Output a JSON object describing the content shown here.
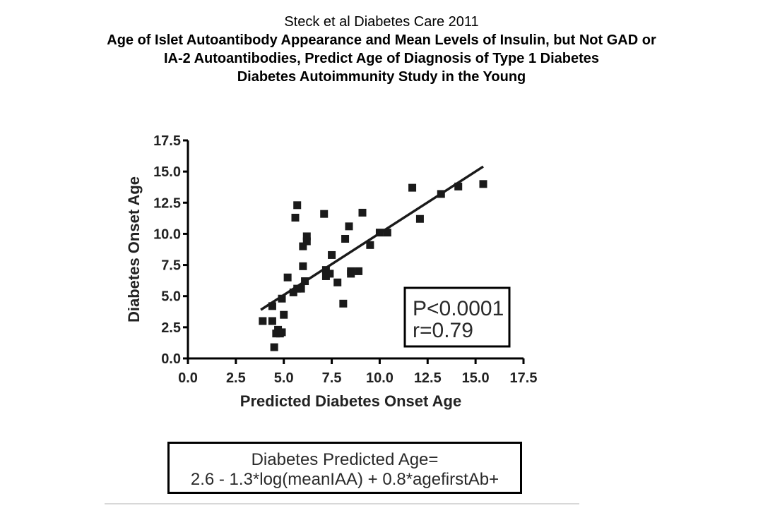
{
  "header": {
    "citation": "Steck et al Diabetes Care 2011",
    "title_line1": "Age of Islet Autoantibody Appearance and Mean Levels of Insulin, but Not GAD or",
    "title_line2": "IA-2 Autoantibodies, Predict Age of Diagnosis of Type 1 Diabetes",
    "title_line3": "Diabetes Autoimmunity Study in the Young"
  },
  "stats_box": {
    "p_value": "P<0.0001",
    "r_value": "r=0.79"
  },
  "formula_box": {
    "line1": "Diabetes Predicted Age=",
    "line2": "2.6 - 1.3*log(meanIAA) + 0.8*agefirstAb+"
  },
  "chart_data": {
    "type": "scatter",
    "title": "",
    "xlabel": "Predicted Diabetes Onset Age",
    "ylabel": "Diabetes Onset Age",
    "xlim": [
      0,
      17.5
    ],
    "ylim": [
      0,
      17.5
    ],
    "x_ticks": [
      "0.0",
      "2.5",
      "5.0",
      "7.5",
      "10.0",
      "12.5",
      "15.0",
      "17.5"
    ],
    "y_ticks": [
      "0.0",
      "2.5",
      "5.0",
      "7.5",
      "10.0",
      "12.5",
      "15.0",
      "17.5"
    ],
    "grid": false,
    "legend": "none",
    "marker": "square",
    "marker_color": "#1a1a1a",
    "series": [
      {
        "x": [
          3.9,
          4.4,
          4.4,
          4.5,
          4.6,
          4.7,
          4.8,
          4.9,
          4.9,
          5.0,
          5.2,
          5.5,
          5.6,
          5.7,
          5.7,
          5.9,
          6.0,
          6.0,
          6.1,
          6.2,
          6.2,
          7.1,
          7.2,
          7.2,
          7.4,
          7.5,
          7.8,
          8.1,
          8.2,
          8.4,
          8.5,
          8.5,
          8.9,
          9.1,
          9.5,
          10.0,
          10.4,
          11.7,
          12.1,
          13.2,
          14.1,
          15.4
        ],
        "y": [
          3.0,
          4.2,
          3.0,
          0.9,
          2.0,
          2.3,
          2.0,
          2.1,
          4.8,
          3.5,
          6.5,
          5.3,
          11.3,
          12.3,
          5.6,
          5.6,
          9.0,
          7.4,
          6.2,
          9.4,
          9.8,
          11.6,
          6.6,
          7.1,
          6.8,
          8.3,
          6.1,
          4.4,
          9.6,
          10.6,
          6.8,
          7.0,
          7.0,
          11.7,
          9.1,
          10.1,
          10.1,
          13.7,
          11.2,
          13.2,
          13.8,
          14.0
        ]
      }
    ],
    "fit_line": {
      "x": [
        3.8,
        15.4
      ],
      "y": [
        3.9,
        15.4
      ]
    },
    "annotations": [
      "P<0.0001",
      "r=0.79"
    ]
  }
}
